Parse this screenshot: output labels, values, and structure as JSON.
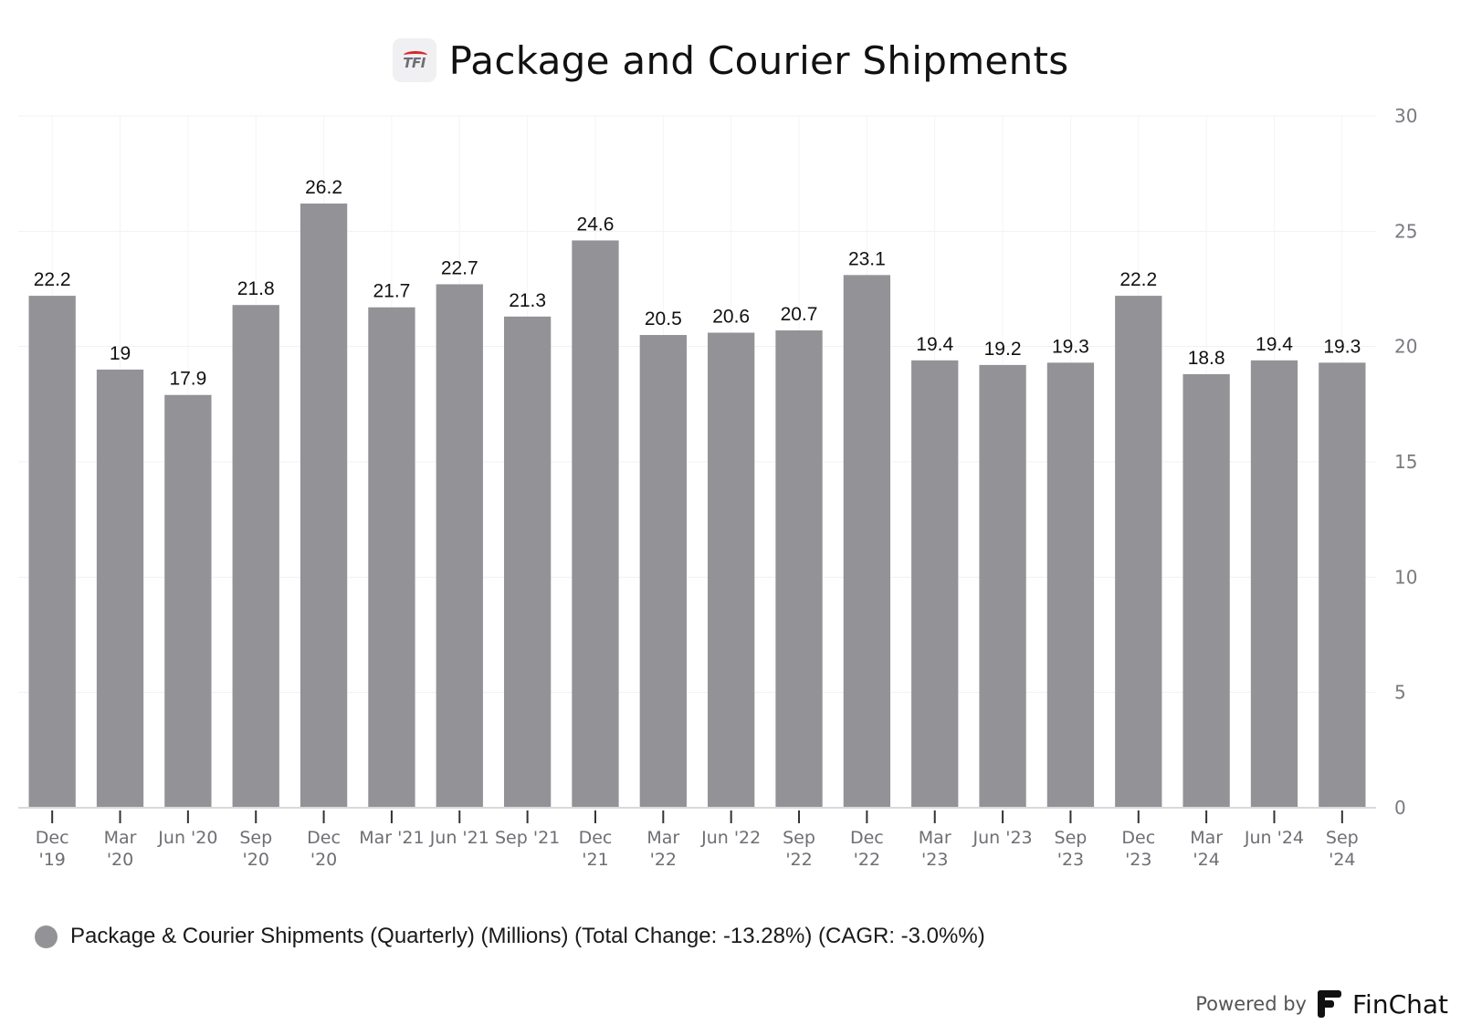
{
  "header": {
    "title": "Package and Courier Shipments",
    "logo_text": "TFI",
    "logo_icon": "tfi-logo-icon"
  },
  "legend": {
    "label": "Package & Courier Shipments (Quarterly) (Millions) (Total Change: -13.28%) (CAGR: -3.0%%)",
    "color": "#939397"
  },
  "footer": {
    "powered_by": "Powered by",
    "brand": "FinChat",
    "brand_icon": "finchat-logo-icon"
  },
  "chart_data": {
    "type": "bar",
    "categories": [
      [
        "Dec",
        "'19"
      ],
      [
        "Mar",
        "'20"
      ],
      [
        "Jun '20"
      ],
      [
        "Sep",
        "'20"
      ],
      [
        "Dec",
        "'20"
      ],
      [
        "Mar '21"
      ],
      [
        "Jun '21"
      ],
      [
        "Sep '21"
      ],
      [
        "Dec",
        "'21"
      ],
      [
        "Mar",
        "'22"
      ],
      [
        "Jun '22"
      ],
      [
        "Sep",
        "'22"
      ],
      [
        "Dec",
        "'22"
      ],
      [
        "Mar",
        "'23"
      ],
      [
        "Jun '23"
      ],
      [
        "Sep",
        "'23"
      ],
      [
        "Dec",
        "'23"
      ],
      [
        "Mar",
        "'24"
      ],
      [
        "Jun '24"
      ],
      [
        "Sep",
        "'24"
      ]
    ],
    "series": [
      {
        "name": "Package & Courier Shipments (Quarterly) (Millions)",
        "values": [
          22.2,
          19,
          17.9,
          21.8,
          26.2,
          21.7,
          22.7,
          21.3,
          24.6,
          20.5,
          20.6,
          20.7,
          23.1,
          19.4,
          19.2,
          19.3,
          22.2,
          18.8,
          19.4,
          19.3
        ],
        "color": "#939397"
      }
    ],
    "data_labels": [
      "22.2",
      "19",
      "17.9",
      "21.8",
      "26.2",
      "21.7",
      "22.7",
      "21.3",
      "24.6",
      "20.5",
      "20.6",
      "20.7",
      "23.1",
      "19.4",
      "19.2",
      "19.3",
      "22.2",
      "18.8",
      "19.4",
      "19.3"
    ],
    "yticks": [
      0,
      5,
      10,
      15,
      20,
      25,
      30
    ],
    "ylim": [
      0,
      30
    ],
    "y_axis_side": "right",
    "grid": true,
    "legend_position": "bottom-left"
  }
}
